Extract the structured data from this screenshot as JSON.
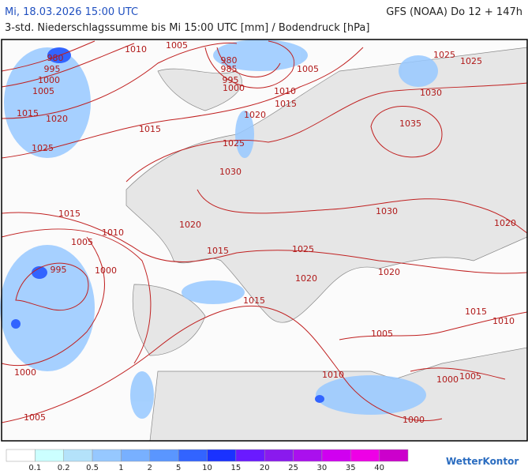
{
  "header": {
    "datetime": "Mi, 18.03.2026 15:00 UTC",
    "model": "GFS (NOAA) Do 12 + 147h",
    "subtitle": "3-std. Niederschlagssumme bis Mi 15:00 UTC [mm] / Bodendruck [hPa]"
  },
  "isobar_labels": [
    980,
    995,
    1000,
    1005,
    1010,
    1005,
    980,
    985,
    995,
    1000,
    1005,
    1010,
    1015,
    1020,
    1015,
    1020,
    1015,
    1025,
    1025,
    1030,
    1025,
    1025,
    1030,
    1035,
    1015,
    1010,
    1005,
    1020,
    1015,
    1025,
    1030,
    995,
    1000,
    1020,
    1020,
    1015,
    1020,
    1015,
    1010,
    1005,
    1010,
    1000,
    1005,
    1000,
    1005,
    1000
  ],
  "legend": {
    "values": [
      0.1,
      0.2,
      0.5,
      1,
      2,
      5,
      10,
      15,
      20,
      25,
      30,
      35,
      40
    ],
    "colors": [
      "#ffffff",
      "#ccffff",
      "#b4e2fa",
      "#96c8ff",
      "#78b0ff",
      "#5a96ff",
      "#3264ff",
      "#1a32ff",
      "#6a1aff",
      "#8a1aee",
      "#aa10ee",
      "#d000f0",
      "#ee00e6",
      "#cc00cc"
    ]
  },
  "logo": "WetterKontor"
}
